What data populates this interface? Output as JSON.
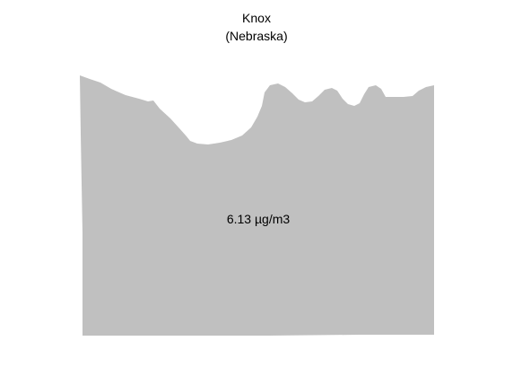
{
  "map": {
    "county": "Knox",
    "state": "(Nebraska)",
    "value_label": "6.13 µg/m3",
    "fill_color": "#c0c0c0",
    "background_color": "#ffffff"
  }
}
